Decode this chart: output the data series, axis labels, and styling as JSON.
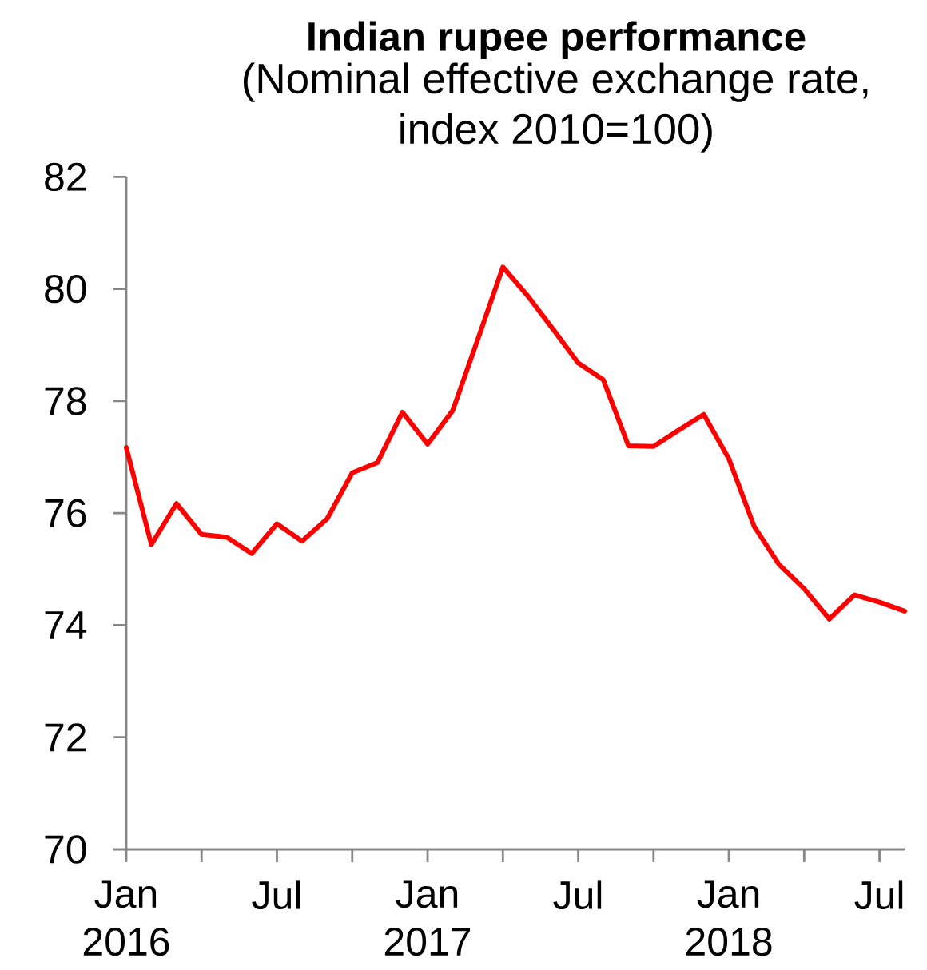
{
  "chart_data": {
    "type": "line",
    "title": "Indian rupee performance",
    "subtitle": "(Nominal effective exchange rate, index 2010=100)",
    "x": [
      "2016-01",
      "2016-02",
      "2016-03",
      "2016-04",
      "2016-05",
      "2016-06",
      "2016-07",
      "2016-08",
      "2016-09",
      "2016-10",
      "2016-11",
      "2016-12",
      "2017-01",
      "2017-02",
      "2017-03",
      "2017-04",
      "2017-05",
      "2017-06",
      "2017-07",
      "2017-08",
      "2017-09",
      "2017-10",
      "2017-11",
      "2017-12",
      "2018-01",
      "2018-02",
      "2018-03",
      "2018-04",
      "2018-05",
      "2018-06",
      "2018-07",
      "2018-08"
    ],
    "series": [
      {
        "color": "#ff0000",
        "values": [
          77.17,
          75.44,
          76.17,
          75.62,
          75.57,
          75.28,
          75.81,
          75.5,
          75.9,
          76.72,
          76.9,
          77.8,
          77.23,
          77.83,
          79.1,
          80.39,
          79.87,
          79.28,
          78.68,
          78.38,
          77.2,
          77.19,
          77.48,
          77.76,
          76.97,
          75.77,
          75.08,
          74.65,
          74.11,
          74.54,
          74.41,
          74.25
        ]
      }
    ],
    "xlim": [
      "2016-01",
      "2018-08"
    ],
    "xticks": [
      {
        "value": "2016-01",
        "label": "Jan 2016"
      },
      {
        "value": "2016-04",
        "label": null
      },
      {
        "value": "2016-07",
        "label": "Jul"
      },
      {
        "value": "2016-10",
        "label": null
      },
      {
        "value": "2017-01",
        "label": "Jan 2017"
      },
      {
        "value": "2017-04",
        "label": null
      },
      {
        "value": "2017-07",
        "label": "Jul"
      },
      {
        "value": "2017-10",
        "label": null
      },
      {
        "value": "2018-01",
        "label": "Jan 2018"
      },
      {
        "value": "2018-04",
        "label": null
      },
      {
        "value": "2018-07",
        "label": "Jul"
      }
    ],
    "ylim": [
      70,
      82
    ],
    "yticks": [
      70,
      72,
      74,
      76,
      78,
      80,
      82
    ],
    "grid": false,
    "marker": "none",
    "line_style": "solid"
  }
}
